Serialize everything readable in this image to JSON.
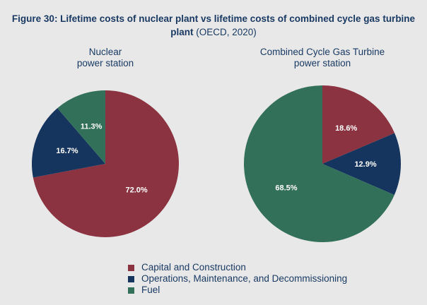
{
  "title": {
    "bold": "Figure 30: Lifetime costs of nuclear plant vs lifetime costs of combined cycle gas turbine plant",
    "source": "(OECD, 2020)"
  },
  "colors": {
    "capital": "#8b3340",
    "operations": "#15355e",
    "fuel": "#33705a"
  },
  "chart_data": [
    {
      "type": "pie",
      "title_lines": [
        "Nuclear",
        "power station"
      ],
      "categories": [
        "Capital and Construction",
        "Operations, Maintenance, and Decommissioning",
        "Fuel"
      ],
      "values": [
        72.0,
        16.7,
        11.3
      ],
      "labels": [
        "72.0%",
        "16.7%",
        "11.3%"
      ],
      "start": "top",
      "direction": "clockwise"
    },
    {
      "type": "pie",
      "title_lines": [
        "Combined Cycle Gas Turbine",
        "power station"
      ],
      "categories": [
        "Capital and Construction",
        "Operations, Maintenance, and Decommissioning",
        "Fuel"
      ],
      "values": [
        18.6,
        12.9,
        68.5
      ],
      "labels": [
        "18.6%",
        "12.9%",
        "68.5%"
      ],
      "start": "top",
      "direction": "clockwise"
    }
  ],
  "legend": {
    "placement": "bottom-center",
    "items": [
      {
        "label": "Capital and Construction",
        "key": "capital"
      },
      {
        "label": "Operations, Maintenance, and Decommissioning",
        "key": "operations"
      },
      {
        "label": "Fuel",
        "key": "fuel"
      }
    ]
  }
}
